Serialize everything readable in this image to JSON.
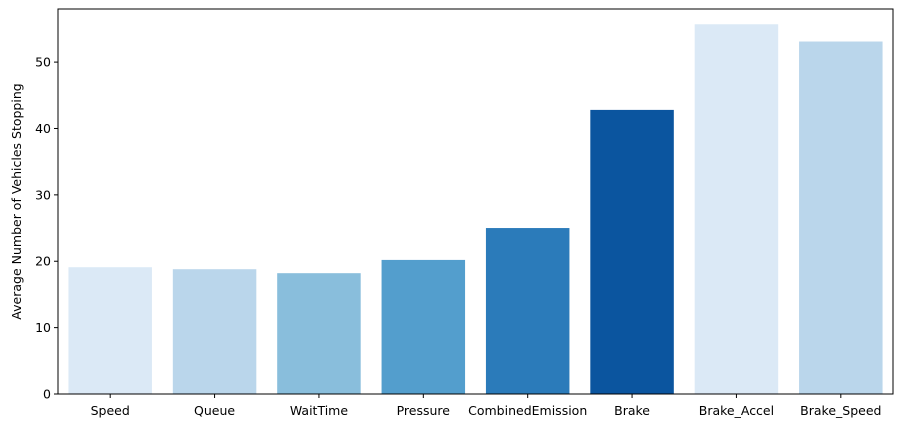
{
  "chart_data": {
    "type": "bar",
    "title": "",
    "xlabel": "",
    "ylabel": "Average Number of Vehicles Stopping",
    "categories": [
      "Speed",
      "Queue",
      "WaitTime",
      "Pressure",
      "CombinedEmission",
      "Brake",
      "Brake_Accel",
      "Brake_Speed"
    ],
    "values": [
      19.1,
      18.8,
      18.2,
      20.2,
      25.0,
      42.8,
      55.7,
      53.1
    ],
    "colors": [
      "#dbe9f6",
      "#bad6eb",
      "#89bedc",
      "#539ecd",
      "#2b7bba",
      "#0b559f",
      "#dbe9f6",
      "#bad6eb"
    ],
    "ylim": [
      0,
      58
    ],
    "yticks": [
      0,
      10,
      20,
      30,
      40,
      50
    ],
    "grid": false,
    "legend": "none"
  }
}
